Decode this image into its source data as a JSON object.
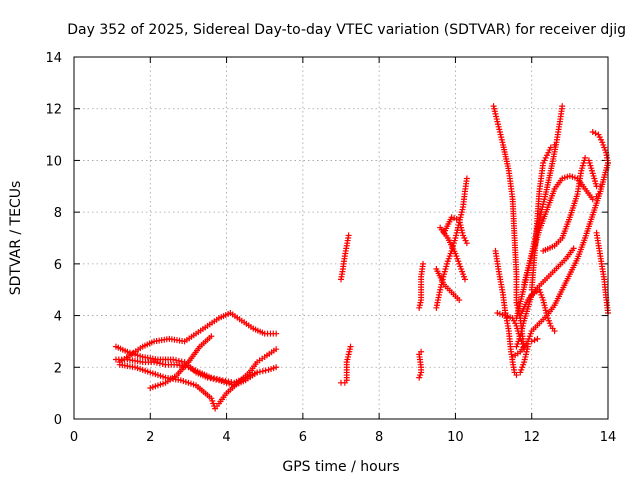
{
  "chart_data": {
    "type": "scatter",
    "title": "Day 352 of 2025, Sidereal Day-to-day VTEC variation (SDTVAR) for receiver djig",
    "xlabel": "GPS time / hours",
    "ylabel": "SDTVAR / TECUs",
    "xlim": [
      0,
      14
    ],
    "ylim": [
      0,
      14
    ],
    "xticks": [
      0,
      2,
      4,
      6,
      8,
      10,
      12,
      14
    ],
    "yticks": [
      0,
      2,
      4,
      6,
      8,
      10,
      12,
      14
    ],
    "grid": true,
    "marker": "+",
    "color": "#ff0000",
    "series": [
      {
        "values": [
          [
            1.1,
            2.8
          ],
          [
            1.4,
            2.6
          ],
          [
            1.8,
            2.4
          ],
          [
            2.2,
            2.3
          ],
          [
            2.6,
            2.3
          ],
          [
            2.9,
            2.2
          ],
          [
            3.2,
            1.8
          ],
          [
            3.5,
            1.6
          ],
          [
            3.8,
            1.5
          ],
          [
            4.2,
            1.3
          ],
          [
            4.5,
            1.5
          ],
          [
            4.8,
            1.8
          ],
          [
            5.1,
            1.9
          ],
          [
            5.3,
            2.0
          ]
        ]
      },
      {
        "values": [
          [
            1.2,
            2.1
          ],
          [
            1.6,
            2.0
          ],
          [
            2.0,
            1.8
          ],
          [
            2.4,
            1.6
          ],
          [
            2.8,
            1.5
          ],
          [
            3.2,
            1.3
          ],
          [
            3.6,
            0.8
          ],
          [
            3.7,
            0.4
          ],
          [
            3.8,
            0.6
          ],
          [
            4.0,
            1.0
          ],
          [
            4.3,
            1.4
          ],
          [
            4.6,
            1.8
          ],
          [
            4.8,
            2.2
          ],
          [
            5.0,
            2.4
          ],
          [
            5.3,
            2.7
          ]
        ]
      },
      {
        "values": [
          [
            1.2,
            2.2
          ],
          [
            1.5,
            2.5
          ],
          [
            1.8,
            2.8
          ],
          [
            2.1,
            3.0
          ],
          [
            2.5,
            3.1
          ],
          [
            2.9,
            3.0
          ],
          [
            3.2,
            3.3
          ],
          [
            3.5,
            3.6
          ],
          [
            3.8,
            3.9
          ],
          [
            4.1,
            4.1
          ],
          [
            4.4,
            3.8
          ],
          [
            4.7,
            3.5
          ],
          [
            5.0,
            3.3
          ],
          [
            5.3,
            3.3
          ]
        ]
      },
      {
        "values": [
          [
            1.1,
            2.3
          ],
          [
            1.4,
            2.3
          ],
          [
            1.8,
            2.2
          ],
          [
            2.1,
            2.2
          ],
          [
            2.4,
            2.1
          ],
          [
            2.7,
            2.1
          ],
          [
            3.0,
            2.0
          ],
          [
            3.3,
            1.8
          ],
          [
            3.6,
            1.6
          ],
          [
            3.9,
            1.5
          ],
          [
            4.2,
            1.4
          ],
          [
            4.5,
            1.6
          ],
          [
            4.8,
            1.8
          ]
        ]
      },
      {
        "values": [
          [
            2.0,
            1.2
          ],
          [
            2.4,
            1.4
          ],
          [
            2.7,
            1.7
          ],
          [
            3.0,
            2.2
          ],
          [
            3.3,
            2.8
          ],
          [
            3.6,
            3.2
          ]
        ]
      },
      {
        "values": [
          [
            7.0,
            5.4
          ],
          [
            7.05,
            5.8
          ],
          [
            7.1,
            6.3
          ],
          [
            7.15,
            6.7
          ],
          [
            7.2,
            7.1
          ]
        ]
      },
      {
        "values": [
          [
            7.0,
            1.4
          ],
          [
            7.1,
            1.4
          ],
          [
            7.15,
            1.5
          ],
          [
            7.15,
            2.2
          ],
          [
            7.2,
            2.5
          ],
          [
            7.25,
            2.8
          ]
        ]
      },
      {
        "values": [
          [
            9.05,
            1.6
          ],
          [
            9.1,
            1.8
          ],
          [
            9.1,
            2.0
          ],
          [
            9.05,
            2.5
          ],
          [
            9.1,
            2.6
          ]
        ]
      },
      {
        "values": [
          [
            9.05,
            4.3
          ],
          [
            9.1,
            4.6
          ],
          [
            9.1,
            5.5
          ],
          [
            9.15,
            6.0
          ]
        ]
      },
      {
        "values": [
          [
            9.5,
            4.3
          ],
          [
            9.6,
            5.0
          ],
          [
            9.7,
            5.6
          ],
          [
            9.8,
            6.1
          ],
          [
            9.9,
            6.5
          ],
          [
            10.0,
            7.0
          ],
          [
            10.1,
            7.6
          ],
          [
            10.2,
            8.2
          ],
          [
            10.25,
            8.8
          ],
          [
            10.3,
            9.3
          ]
        ]
      },
      {
        "values": [
          [
            9.6,
            7.4
          ],
          [
            9.8,
            7.0
          ],
          [
            10.0,
            6.4
          ],
          [
            10.1,
            6.0
          ],
          [
            10.2,
            5.6
          ],
          [
            10.25,
            5.4
          ]
        ]
      },
      {
        "values": [
          [
            9.7,
            7.2
          ],
          [
            9.9,
            7.8
          ],
          [
            10.1,
            7.7
          ],
          [
            10.2,
            7.1
          ],
          [
            10.3,
            6.8
          ]
        ]
      },
      {
        "values": [
          [
            9.5,
            5.8
          ],
          [
            9.7,
            5.2
          ],
          [
            9.9,
            4.9
          ],
          [
            10.1,
            4.6
          ]
        ]
      },
      {
        "values": [
          [
            11.0,
            12.1
          ],
          [
            11.1,
            11.5
          ],
          [
            11.25,
            10.6
          ],
          [
            11.4,
            9.6
          ],
          [
            11.5,
            8.5
          ],
          [
            11.55,
            7.0
          ],
          [
            11.6,
            5.6
          ],
          [
            11.6,
            4.5
          ],
          [
            11.7,
            3.9
          ],
          [
            11.75,
            3.3
          ],
          [
            11.8,
            2.7
          ]
        ]
      },
      {
        "values": [
          [
            11.05,
            6.5
          ],
          [
            11.15,
            5.6
          ],
          [
            11.25,
            4.8
          ],
          [
            11.3,
            4.2
          ],
          [
            11.4,
            3.4
          ],
          [
            11.45,
            2.7
          ],
          [
            11.5,
            2.2
          ],
          [
            11.55,
            1.8
          ],
          [
            11.6,
            1.7
          ],
          [
            11.7,
            1.8
          ],
          [
            11.8,
            2.2
          ],
          [
            11.9,
            2.8
          ]
        ]
      },
      {
        "values": [
          [
            11.1,
            4.1
          ],
          [
            11.3,
            4.0
          ],
          [
            11.5,
            3.9
          ],
          [
            11.6,
            3.6
          ],
          [
            11.7,
            3.1
          ],
          [
            11.8,
            2.8
          ],
          [
            11.9,
            2.9
          ],
          [
            12.0,
            3.0
          ],
          [
            12.15,
            3.1
          ]
        ]
      },
      {
        "values": [
          [
            11.5,
            2.4
          ],
          [
            11.7,
            2.6
          ],
          [
            11.9,
            3.0
          ],
          [
            12.0,
            3.4
          ],
          [
            12.2,
            3.7
          ],
          [
            12.4,
            4.0
          ],
          [
            12.6,
            4.4
          ],
          [
            12.8,
            5.0
          ],
          [
            13.0,
            5.6
          ],
          [
            13.2,
            6.2
          ],
          [
            13.4,
            7.0
          ],
          [
            13.6,
            7.9
          ],
          [
            13.8,
            8.8
          ],
          [
            14.0,
            9.9
          ]
        ]
      },
      {
        "values": [
          [
            11.6,
            3.9
          ],
          [
            11.8,
            5.1
          ],
          [
            12.0,
            6.3
          ],
          [
            12.2,
            7.3
          ],
          [
            12.4,
            8.1
          ],
          [
            12.6,
            8.9
          ],
          [
            12.8,
            9.3
          ],
          [
            13.0,
            9.4
          ],
          [
            13.2,
            9.3
          ],
          [
            13.4,
            8.9
          ],
          [
            13.6,
            8.5
          ],
          [
            13.7,
            8.6
          ],
          [
            13.8,
            8.8
          ]
        ]
      },
      {
        "values": [
          [
            11.7,
            4.0
          ],
          [
            11.9,
            4.6
          ],
          [
            12.1,
            5.0
          ],
          [
            12.3,
            5.3
          ],
          [
            12.5,
            5.6
          ],
          [
            12.7,
            5.9
          ],
          [
            12.9,
            6.2
          ],
          [
            13.1,
            6.6
          ]
        ]
      },
      {
        "values": [
          [
            11.8,
            5.2
          ],
          [
            12.0,
            6.4
          ],
          [
            12.2,
            7.7
          ],
          [
            12.35,
            8.6
          ],
          [
            12.5,
            9.6
          ],
          [
            12.65,
            10.7
          ],
          [
            12.75,
            11.6
          ],
          [
            12.8,
            12.1
          ]
        ]
      },
      {
        "values": [
          [
            11.6,
            2.8
          ],
          [
            11.7,
            3.2
          ],
          [
            11.8,
            3.8
          ],
          [
            12.0,
            4.8
          ],
          [
            12.2,
            5.0
          ],
          [
            12.3,
            4.6
          ],
          [
            12.4,
            4.0
          ],
          [
            12.5,
            3.6
          ],
          [
            12.6,
            3.4
          ]
        ]
      },
      {
        "values": [
          [
            12.3,
            6.5
          ],
          [
            12.6,
            6.7
          ],
          [
            12.8,
            7.0
          ],
          [
            13.0,
            7.8
          ],
          [
            13.2,
            8.7
          ],
          [
            13.3,
            9.6
          ],
          [
            13.4,
            10.1
          ],
          [
            13.5,
            10.0
          ],
          [
            13.6,
            9.5
          ],
          [
            13.7,
            9.0
          ],
          [
            13.8,
            9.0
          ]
        ]
      },
      {
        "values": [
          [
            13.6,
            11.1
          ],
          [
            13.75,
            11.0
          ],
          [
            13.85,
            10.7
          ],
          [
            13.95,
            10.3
          ],
          [
            14.0,
            9.9
          ]
        ]
      },
      {
        "values": [
          [
            13.7,
            7.2
          ],
          [
            13.8,
            6.3
          ],
          [
            13.9,
            5.4
          ],
          [
            13.95,
            4.7
          ],
          [
            14.0,
            4.1
          ]
        ]
      },
      {
        "values": [
          [
            12.0,
            5.0
          ],
          [
            12.1,
            6.8
          ],
          [
            12.2,
            8.8
          ],
          [
            12.3,
            9.9
          ],
          [
            12.4,
            10.2
          ],
          [
            12.5,
            10.5
          ],
          [
            12.6,
            10.6
          ]
        ]
      }
    ]
  }
}
